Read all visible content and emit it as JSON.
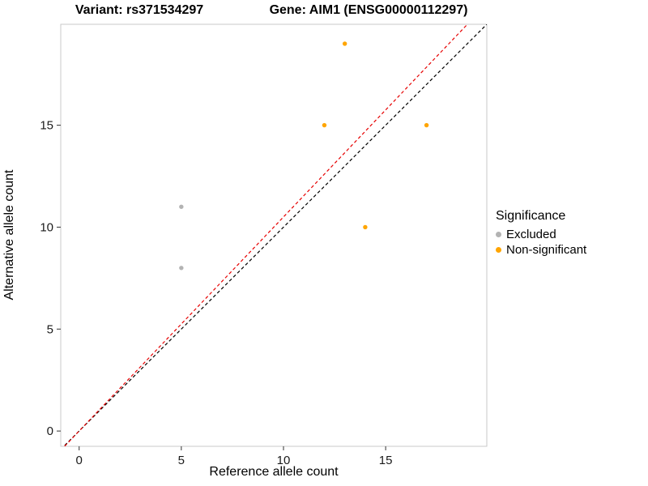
{
  "chart_data": {
    "type": "scatter",
    "titles": [
      "Variant: rs371534297",
      "Gene: AIM1 (ENSG00000112297)"
    ],
    "xlabel": "Reference allele count",
    "ylabel": "Alternative allele count",
    "xlim": [
      -0.9,
      19.95
    ],
    "ylim": [
      -0.75,
      19.95
    ],
    "xticks": [
      0,
      5,
      10,
      15
    ],
    "yticks": [
      0,
      5,
      10,
      15
    ],
    "grid": false,
    "legend": {
      "title": "Significance",
      "position": "right"
    },
    "series": [
      {
        "name": "Excluded",
        "color": "#B3B3B3",
        "points": [
          [
            5,
            11
          ],
          [
            5,
            8
          ]
        ]
      },
      {
        "name": "Non-significant",
        "color": "#FFA500",
        "points": [
          [
            13,
            19
          ],
          [
            12,
            15
          ],
          [
            17,
            15
          ],
          [
            14,
            10
          ]
        ]
      }
    ],
    "reference_lines": [
      {
        "name": "identity-line",
        "slope": 1.0,
        "intercept": 0,
        "color": "#000000",
        "style": "dashed"
      },
      {
        "name": "fit-line",
        "slope": 1.05,
        "intercept": 0,
        "color": "#E60000",
        "style": "dashed"
      }
    ],
    "panel": {
      "background": "#FFFFFF",
      "border_color": "#C9C9C9"
    }
  }
}
